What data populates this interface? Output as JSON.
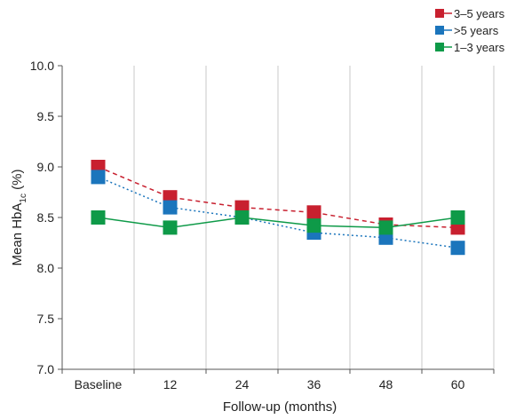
{
  "chart_data": {
    "type": "line",
    "categories": [
      "Baseline",
      "12",
      "24",
      "36",
      "48",
      "60"
    ],
    "xlabel": "Follow-up (months)",
    "ylabel": {
      "prefix": "Mean HbA",
      "sub": "1c",
      "suffix": " (%)"
    },
    "ylim": [
      7.0,
      10.0
    ],
    "yticks": [
      "7.0",
      "7.5",
      "8.0",
      "8.5",
      "9.0",
      "9.5",
      "10.0"
    ],
    "grid": "vertical",
    "legend_position": "top-right",
    "series": [
      {
        "name": "3–5 years",
        "color": "#c8202f",
        "dash": "dashed",
        "values": [
          9.0,
          8.7,
          8.6,
          8.55,
          8.43,
          8.4
        ]
      },
      {
        "name": ">5 years",
        "color": "#1b75bc",
        "dash": "dotted",
        "values": [
          8.9,
          8.6,
          8.5,
          8.35,
          8.3,
          8.2
        ]
      },
      {
        "name": "1–3 years",
        "color": "#0e9a48",
        "dash": "solid",
        "values": [
          8.5,
          8.4,
          8.5,
          8.42,
          8.4,
          8.5
        ]
      }
    ]
  }
}
